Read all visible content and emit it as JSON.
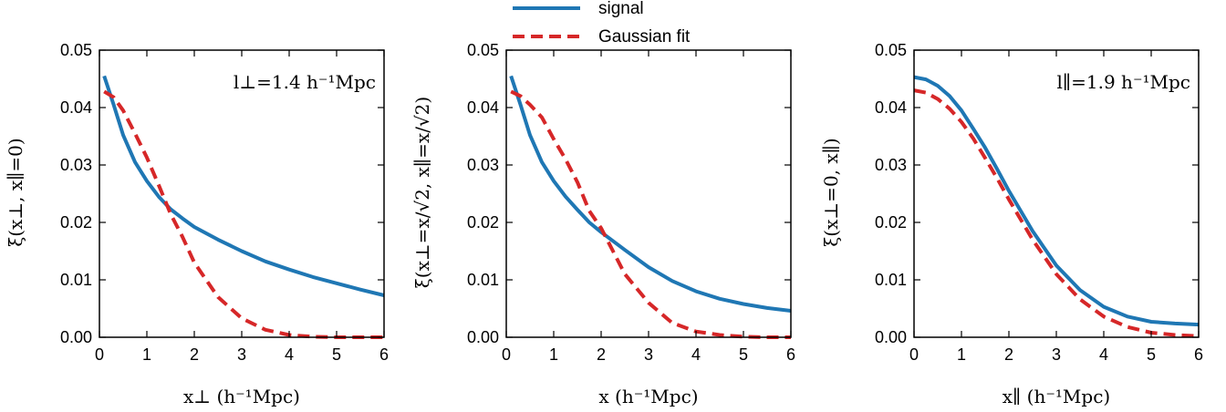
{
  "legend": {
    "placement": "top-center",
    "entries": [
      {
        "label": "signal",
        "color": "#1f77b4",
        "dash": "solid"
      },
      {
        "label": "Gaussian fit",
        "color": "#d62728",
        "dash": "dashed"
      }
    ]
  },
  "chart_data": [
    {
      "type": "line",
      "annotation": "l⊥=1.4 h⁻¹Mpc",
      "xlabel": "x⊥  (h⁻¹Mpc)",
      "ylabel": "ξ(x⊥, x∥=0)",
      "xlim": [
        0,
        6
      ],
      "ylim": [
        0,
        0.05
      ],
      "xticks": [
        "0",
        "1",
        "2",
        "3",
        "4",
        "5",
        "6"
      ],
      "yticks": [
        "0.00",
        "0.01",
        "0.02",
        "0.03",
        "0.04",
        "0.05"
      ],
      "grid": false,
      "x": [
        0.1,
        0.3,
        0.5,
        0.75,
        1.0,
        1.25,
        1.5,
        1.75,
        2.0,
        2.5,
        3.0,
        3.5,
        4.0,
        4.5,
        5.0,
        5.5,
        6.0
      ],
      "series": [
        {
          "name": "signal",
          "values": [
            0.0455,
            0.0405,
            0.0352,
            0.0305,
            0.0272,
            0.0245,
            0.0223,
            0.0207,
            0.0192,
            0.017,
            0.015,
            0.0132,
            0.0118,
            0.0105,
            0.0094,
            0.0083,
            0.0073
          ]
        },
        {
          "name": "Gaussian fit",
          "values": [
            0.0428,
            0.0418,
            0.0395,
            0.0355,
            0.0313,
            0.0265,
            0.0215,
            0.0175,
            0.013,
            0.007,
            0.0033,
            0.0013,
            0.0004,
            0.0001,
            0.0,
            0.0,
            0.0
          ]
        }
      ]
    },
    {
      "type": "line",
      "xlabel": "x  (h⁻¹Mpc)",
      "ylabel": "ξ(x⊥=x/√2, x∥=x/√2)",
      "xlim": [
        0,
        6
      ],
      "ylim": [
        0,
        0.05
      ],
      "xticks": [
        "0",
        "1",
        "2",
        "3",
        "4",
        "5",
        "6"
      ],
      "yticks": [
        "0.00",
        "0.01",
        "0.02",
        "0.03",
        "0.04",
        "0.05"
      ],
      "grid": false,
      "x": [
        0.1,
        0.3,
        0.5,
        0.75,
        1.0,
        1.25,
        1.5,
        1.75,
        2.0,
        2.5,
        3.0,
        3.5,
        4.0,
        4.5,
        5.0,
        5.5,
        6.0
      ],
      "series": [
        {
          "name": "signal",
          "values": [
            0.0455,
            0.0405,
            0.0352,
            0.0305,
            0.0272,
            0.0245,
            0.0222,
            0.02,
            0.0183,
            0.0152,
            0.0122,
            0.0098,
            0.008,
            0.0067,
            0.0058,
            0.0051,
            0.0046
          ]
        },
        {
          "name": "Gaussian fit",
          "values": [
            0.0428,
            0.042,
            0.0405,
            0.0383,
            0.0345,
            0.031,
            0.027,
            0.022,
            0.019,
            0.011,
            0.006,
            0.0025,
            0.001,
            0.0004,
            0.0001,
            0.0,
            0.0
          ]
        }
      ]
    },
    {
      "type": "line",
      "annotation": "l∥=1.9 h⁻¹Mpc",
      "xlabel": "x∥  (h⁻¹Mpc)",
      "ylabel": "ξ(x⊥=0, x∥)",
      "xlim": [
        0,
        6
      ],
      "ylim": [
        0,
        0.05
      ],
      "xticks": [
        "0",
        "1",
        "2",
        "3",
        "4",
        "5",
        "6"
      ],
      "yticks": [
        "0.00",
        "0.01",
        "0.02",
        "0.03",
        "0.04",
        "0.05"
      ],
      "grid": false,
      "x": [
        0.0,
        0.25,
        0.5,
        0.75,
        1.0,
        1.25,
        1.5,
        1.75,
        2.0,
        2.5,
        3.0,
        3.5,
        4.0,
        4.5,
        5.0,
        5.5,
        6.0
      ],
      "series": [
        {
          "name": "signal",
          "values": [
            0.0453,
            0.0449,
            0.0438,
            0.042,
            0.0395,
            0.0363,
            0.033,
            0.0293,
            0.0255,
            0.0185,
            0.0125,
            0.0082,
            0.0053,
            0.0036,
            0.0027,
            0.0024,
            0.0022
          ]
        },
        {
          "name": "Gaussian fit",
          "values": [
            0.043,
            0.0426,
            0.0415,
            0.0398,
            0.0375,
            0.0346,
            0.0312,
            0.0277,
            0.024,
            0.017,
            0.011,
            0.0066,
            0.0036,
            0.0018,
            0.0008,
            0.0004,
            0.0002
          ]
        }
      ]
    }
  ]
}
